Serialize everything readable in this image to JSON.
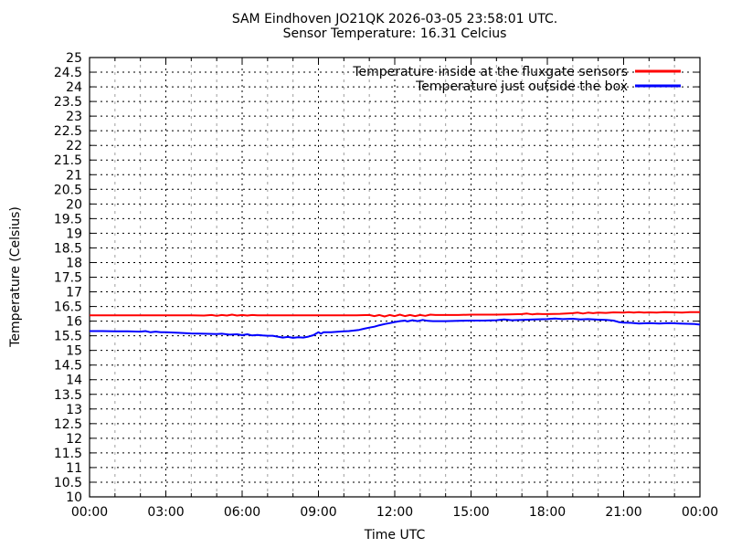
{
  "title": "SAM Eindhoven JO21QK 2026-03-05 23:58:01 UTC.",
  "subtitle": "Sensor Temperature: 16.31 Celcius",
  "chart_data": {
    "type": "line",
    "title": "SAM Eindhoven JO21QK 2026-03-05 23:58:01 UTC.",
    "subtitle": "Sensor Temperature: 16.31 Celcius",
    "xlabel": "Time UTC",
    "ylabel": "Temperature (Celsius)",
    "xlim": [
      0,
      24
    ],
    "ylim": [
      10,
      25
    ],
    "grid": {
      "major_color": "#000000",
      "minor_color": "#9e9e9e",
      "major_dash": "2 4",
      "minor_dash": "3 5"
    },
    "axis_color": "#000000",
    "background": "#ffffff",
    "legend_position": "top-right-inside",
    "xticks": {
      "positions": [
        0,
        3,
        6,
        9,
        12,
        15,
        18,
        21,
        24
      ],
      "labels": [
        "00:00",
        "03:00",
        "06:00",
        "09:00",
        "12:00",
        "15:00",
        "18:00",
        "21:00",
        "00:00"
      ]
    },
    "x_minor_step": 1,
    "yticks": {
      "positions": [
        25,
        24.5,
        24,
        23.5,
        23,
        22.5,
        22,
        21.5,
        21,
        20.5,
        20,
        19.5,
        19,
        18.5,
        18,
        17.5,
        17,
        16.5,
        16,
        15.5,
        15,
        14.5,
        14,
        13.5,
        13,
        12.5,
        12,
        11.5,
        11,
        10.5,
        10
      ],
      "labels": [
        "25",
        "24.5",
        "24",
        "23.5",
        "23",
        "22.5",
        "22",
        "21.5",
        "21",
        "20.5",
        "20",
        "19.5",
        "19",
        "18.5",
        "18",
        "17.5",
        "17",
        "16.5",
        "16",
        "15.5",
        "15",
        "14.5",
        "14",
        "13.5",
        "13",
        "12.5",
        "12",
        "11.5",
        "11",
        "10.5",
        "10"
      ]
    },
    "series": [
      {
        "id": "inside",
        "name": "Temperature inside at the fluxgate sensors",
        "color": "#ff0000",
        "width": 2,
        "points": [
          [
            0,
            16.2
          ],
          [
            0.5,
            16.2
          ],
          [
            1,
            16.2
          ],
          [
            1.5,
            16.2
          ],
          [
            2,
            16.2
          ],
          [
            2.5,
            16.2
          ],
          [
            3,
            16.2
          ],
          [
            3.5,
            16.2
          ],
          [
            4,
            16.2
          ],
          [
            4.5,
            16.19
          ],
          [
            4.8,
            16.21
          ],
          [
            5,
            16.18
          ],
          [
            5.2,
            16.21
          ],
          [
            5.4,
            16.19
          ],
          [
            5.6,
            16.22
          ],
          [
            5.8,
            16.19
          ],
          [
            6,
            16.21
          ],
          [
            6.2,
            16.19
          ],
          [
            6.4,
            16.21
          ],
          [
            6.6,
            16.2
          ],
          [
            7,
            16.2
          ],
          [
            7.5,
            16.2
          ],
          [
            8,
            16.2
          ],
          [
            8.5,
            16.2
          ],
          [
            9,
            16.2
          ],
          [
            9.5,
            16.2
          ],
          [
            10,
            16.2
          ],
          [
            10.5,
            16.2
          ],
          [
            11,
            16.21
          ],
          [
            11.2,
            16.17
          ],
          [
            11.4,
            16.21
          ],
          [
            11.6,
            16.16
          ],
          [
            11.8,
            16.21
          ],
          [
            12,
            16.17
          ],
          [
            12.2,
            16.22
          ],
          [
            12.4,
            16.17
          ],
          [
            12.6,
            16.21
          ],
          [
            12.8,
            16.17
          ],
          [
            13,
            16.21
          ],
          [
            13.2,
            16.18
          ],
          [
            13.4,
            16.22
          ],
          [
            13.6,
            16.21
          ],
          [
            14,
            16.21
          ],
          [
            14.5,
            16.21
          ],
          [
            15,
            16.22
          ],
          [
            15.5,
            16.22
          ],
          [
            16,
            16.22
          ],
          [
            16.5,
            16.23
          ],
          [
            17,
            16.24
          ],
          [
            17.2,
            16.26
          ],
          [
            17.4,
            16.23
          ],
          [
            17.6,
            16.25
          ],
          [
            17.8,
            16.24
          ],
          [
            18,
            16.24
          ],
          [
            18.5,
            16.25
          ],
          [
            19,
            16.27
          ],
          [
            19.2,
            16.29
          ],
          [
            19.4,
            16.26
          ],
          [
            19.6,
            16.29
          ],
          [
            19.8,
            16.27
          ],
          [
            20,
            16.29
          ],
          [
            20.3,
            16.28
          ],
          [
            20.6,
            16.3
          ],
          [
            21,
            16.29
          ],
          [
            21.2,
            16.31
          ],
          [
            21.4,
            16.29
          ],
          [
            21.6,
            16.31
          ],
          [
            21.8,
            16.29
          ],
          [
            22,
            16.3
          ],
          [
            22.3,
            16.29
          ],
          [
            22.6,
            16.31
          ],
          [
            23,
            16.3
          ],
          [
            23.3,
            16.29
          ],
          [
            23.6,
            16.31
          ],
          [
            24,
            16.31
          ]
        ]
      },
      {
        "id": "outside",
        "name": "Temperature just outside the box",
        "color": "#0000ff",
        "width": 2,
        "points": [
          [
            0,
            15.66
          ],
          [
            0.5,
            15.66
          ],
          [
            1,
            15.65
          ],
          [
            1.5,
            15.65
          ],
          [
            2,
            15.64
          ],
          [
            2.2,
            15.66
          ],
          [
            2.4,
            15.62
          ],
          [
            2.6,
            15.64
          ],
          [
            2.8,
            15.62
          ],
          [
            3,
            15.62
          ],
          [
            3.5,
            15.6
          ],
          [
            4,
            15.58
          ],
          [
            4.5,
            15.57
          ],
          [
            5,
            15.56
          ],
          [
            5.2,
            15.57
          ],
          [
            5.5,
            15.54
          ],
          [
            5.8,
            15.55
          ],
          [
            6,
            15.52
          ],
          [
            6.2,
            15.55
          ],
          [
            6.4,
            15.51
          ],
          [
            6.6,
            15.53
          ],
          [
            6.8,
            15.51
          ],
          [
            7,
            15.5
          ],
          [
            7.2,
            15.5
          ],
          [
            7.4,
            15.47
          ],
          [
            7.6,
            15.44
          ],
          [
            7.8,
            15.46
          ],
          [
            8,
            15.43
          ],
          [
            8.2,
            15.45
          ],
          [
            8.4,
            15.44
          ],
          [
            8.6,
            15.47
          ],
          [
            8.8,
            15.52
          ],
          [
            9,
            15.62
          ],
          [
            9.1,
            15.57
          ],
          [
            9.2,
            15.62
          ],
          [
            9.5,
            15.62
          ],
          [
            9.8,
            15.64
          ],
          [
            10,
            15.65
          ],
          [
            10.2,
            15.66
          ],
          [
            10.4,
            15.68
          ],
          [
            10.6,
            15.7
          ],
          [
            10.8,
            15.74
          ],
          [
            11,
            15.78
          ],
          [
            11.2,
            15.81
          ],
          [
            11.4,
            15.86
          ],
          [
            11.6,
            15.9
          ],
          [
            11.8,
            15.93
          ],
          [
            12,
            15.97
          ],
          [
            12.2,
            16.0
          ],
          [
            12.4,
            16.02
          ],
          [
            12.5,
            15.99
          ],
          [
            12.7,
            16.03
          ],
          [
            12.9,
            16.0
          ],
          [
            13.1,
            16.04
          ],
          [
            13.3,
            16.01
          ],
          [
            13.5,
            16.0
          ],
          [
            14,
            16.0
          ],
          [
            14.5,
            16.01
          ],
          [
            15,
            16.02
          ],
          [
            15.5,
            16.02
          ],
          [
            16,
            16.03
          ],
          [
            16.3,
            16.06
          ],
          [
            16.6,
            16.03
          ],
          [
            17,
            16.04
          ],
          [
            17.5,
            16.06
          ],
          [
            18,
            16.07
          ],
          [
            18.3,
            16.09
          ],
          [
            18.6,
            16.07
          ],
          [
            19,
            16.08
          ],
          [
            19.3,
            16.06
          ],
          [
            19.6,
            16.07
          ],
          [
            20,
            16.05
          ],
          [
            20.3,
            16.04
          ],
          [
            20.6,
            16.02
          ],
          [
            20.8,
            15.97
          ],
          [
            21,
            15.95
          ],
          [
            21.3,
            15.94
          ],
          [
            21.6,
            15.92
          ],
          [
            22,
            15.93
          ],
          [
            22.4,
            15.92
          ],
          [
            22.8,
            15.93
          ],
          [
            23.2,
            15.92
          ],
          [
            23.5,
            15.91
          ],
          [
            23.8,
            15.9
          ],
          [
            24,
            15.88
          ]
        ]
      }
    ]
  }
}
